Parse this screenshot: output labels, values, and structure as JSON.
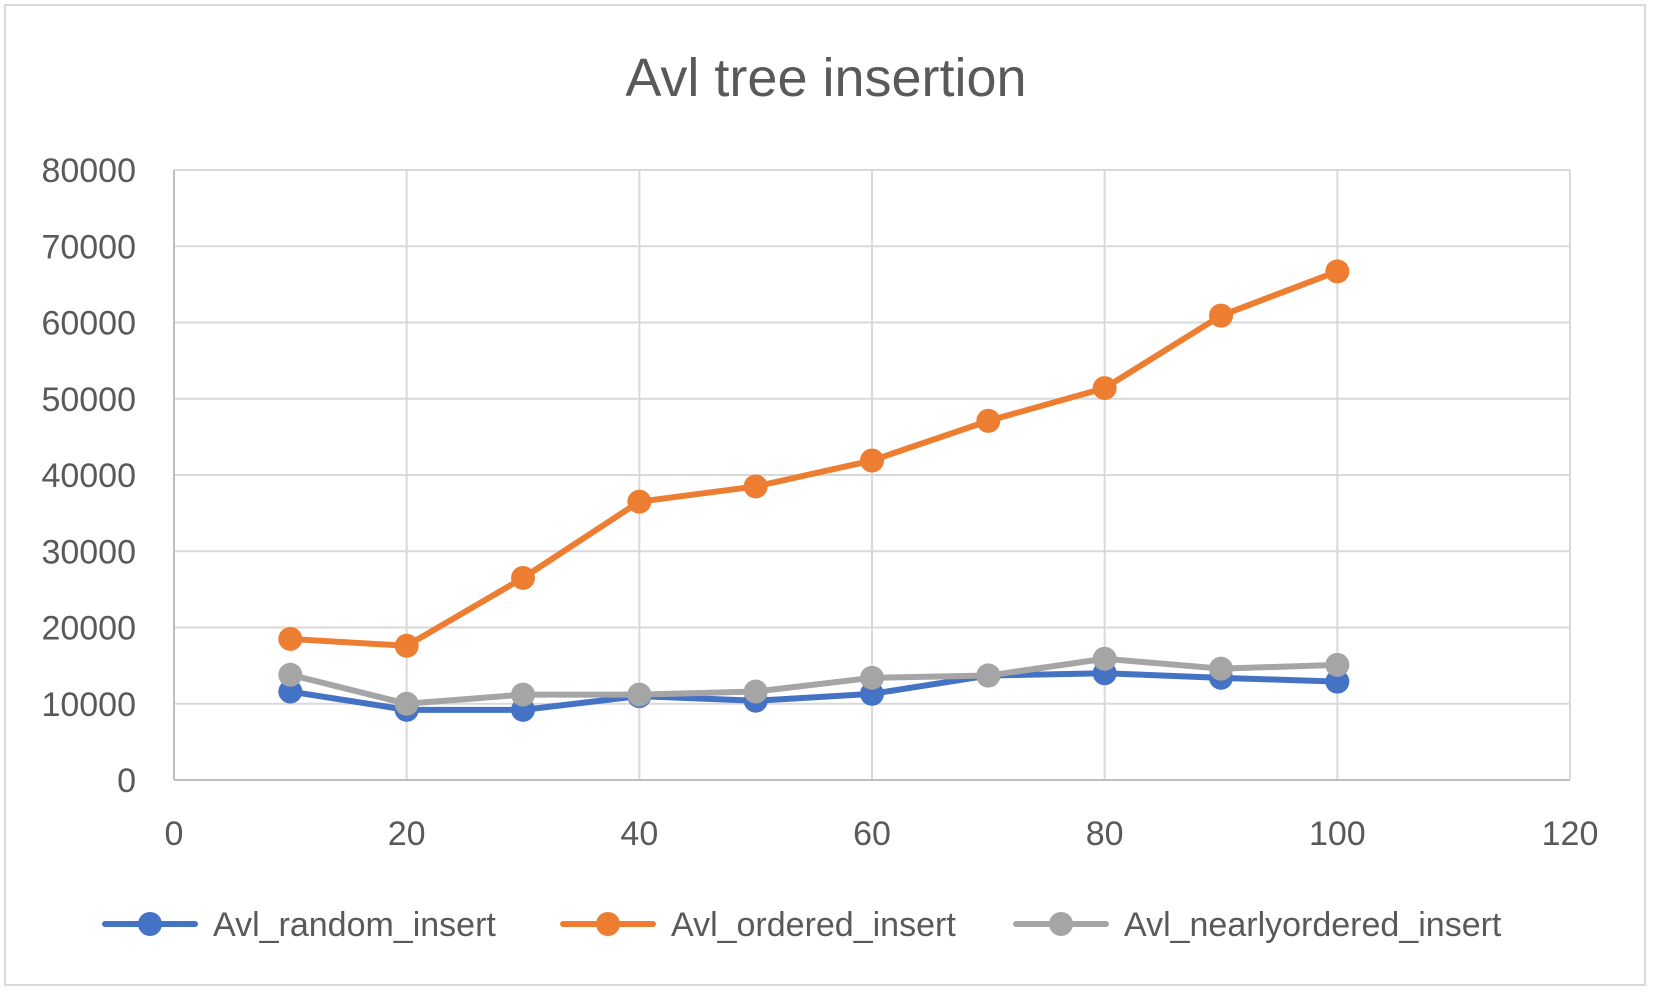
{
  "chart_data": {
    "type": "scatter",
    "title": "Avl tree insertion",
    "xlabel": "",
    "ylabel": "",
    "xlim": [
      0,
      120
    ],
    "ylim": [
      0,
      80000
    ],
    "x_ticks": [
      0,
      20,
      40,
      60,
      80,
      100,
      120
    ],
    "y_ticks": [
      0,
      10000,
      20000,
      30000,
      40000,
      50000,
      60000,
      70000,
      80000
    ],
    "x_tick_labels": [
      "0",
      "20",
      "40",
      "60",
      "80",
      "100",
      "120"
    ],
    "y_tick_labels": [
      "0",
      "10000",
      "20000",
      "30000",
      "40000",
      "50000",
      "60000",
      "70000",
      "80000"
    ],
    "grid": true,
    "legend_position": "bottom",
    "x": [
      10,
      20,
      30,
      40,
      50,
      60,
      70,
      80,
      90,
      100
    ],
    "series": [
      {
        "name": "Avl_random_insert",
        "color": "#4472c4",
        "values": [
          11600,
          9200,
          9200,
          11000,
          10400,
          11300,
          13700,
          14000,
          13400,
          12900
        ]
      },
      {
        "name": "Avl_ordered_insert",
        "color": "#ed7d31",
        "values": [
          18500,
          17600,
          26500,
          36500,
          38500,
          41900,
          47100,
          51400,
          60900,
          66700
        ]
      },
      {
        "name": "Avl_nearlyordered_insert",
        "color": "#a5a5a5",
        "values": [
          13800,
          10000,
          11200,
          11200,
          11600,
          13400,
          13700,
          15900,
          14600,
          15100
        ]
      }
    ]
  }
}
